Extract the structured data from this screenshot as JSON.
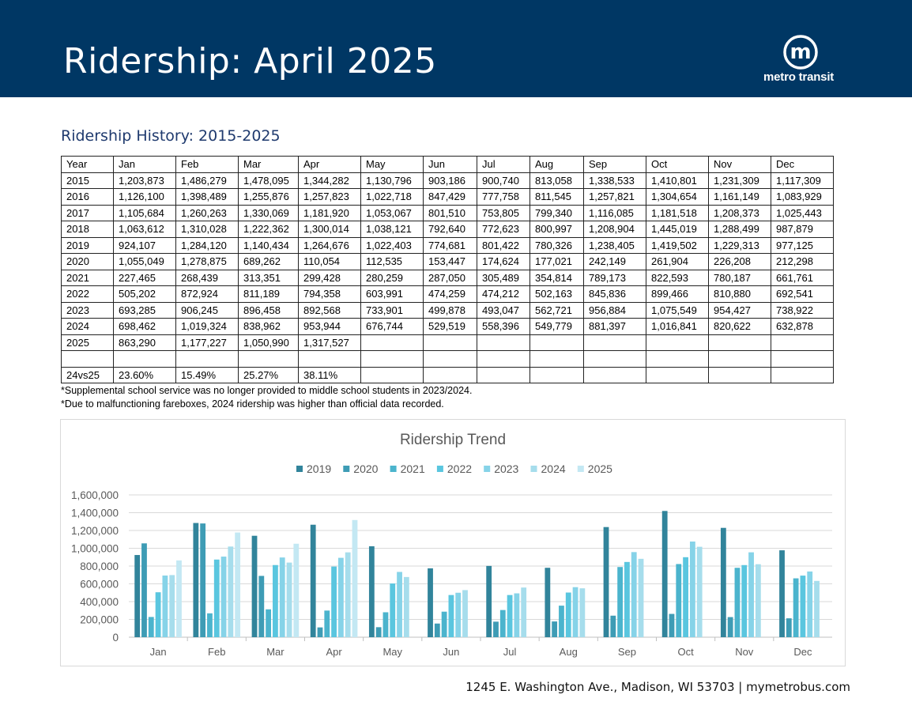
{
  "header": {
    "title": "Ridership: April 2025",
    "brand": "metro transit",
    "logo_letter": "m"
  },
  "section_title": "Ridership History: 2015-2025",
  "table": {
    "headers": [
      "Year",
      "Jan",
      "Feb",
      "Mar",
      "Apr",
      "May",
      "Jun",
      "Jul",
      "Aug",
      "Sep",
      "Oct",
      "Nov",
      "Dec"
    ],
    "rows": [
      [
        "2015",
        "1,203,873",
        "1,486,279",
        "1,478,095",
        "1,344,282",
        "1,130,796",
        "903,186",
        "900,740",
        "813,058",
        "1,338,533",
        "1,410,801",
        "1,231,309",
        "1,117,309"
      ],
      [
        "2016",
        "1,126,100",
        "1,398,489",
        "1,255,876",
        "1,257,823",
        "1,022,718",
        "847,429",
        "777,758",
        "811,545",
        "1,257,821",
        "1,304,654",
        "1,161,149",
        "1,083,929"
      ],
      [
        "2017",
        "1,105,684",
        "1,260,263",
        "1,330,069",
        "1,181,920",
        "1,053,067",
        "801,510",
        "753,805",
        "799,340",
        "1,116,085",
        "1,181,518",
        "1,208,373",
        "1,025,443"
      ],
      [
        "2018",
        "1,063,612",
        "1,310,028",
        "1,222,362",
        "1,300,014",
        "1,038,121",
        "792,640",
        "772,623",
        "800,997",
        "1,208,904",
        "1,445,019",
        "1,288,499",
        "987,879"
      ],
      [
        "2019",
        "924,107",
        "1,284,120",
        "1,140,434",
        "1,264,676",
        "1,022,403",
        "774,681",
        "801,422",
        "780,326",
        "1,238,405",
        "1,419,502",
        "1,229,313",
        "977,125"
      ],
      [
        "2020",
        "1,055,049",
        "1,278,875",
        "689,262",
        "110,054",
        "112,535",
        "153,447",
        "174,624",
        "177,021",
        "242,149",
        "261,904",
        "226,208",
        "212,298"
      ],
      [
        "2021",
        "227,465",
        "268,439",
        "313,351",
        "299,428",
        "280,259",
        "287,050",
        "305,489",
        "354,814",
        "789,173",
        "822,593",
        "780,187",
        "661,761"
      ],
      [
        "2022",
        "505,202",
        "872,924",
        "811,189",
        "794,358",
        "603,991",
        "474,259",
        "474,212",
        "502,163",
        "845,836",
        "899,466",
        "810,880",
        "692,541"
      ],
      [
        "2023",
        "693,285",
        "906,245",
        "896,458",
        "892,568",
        "733,901",
        "499,878",
        "493,047",
        "562,721",
        "956,884",
        "1,075,549",
        "954,427",
        "738,922"
      ],
      [
        "2024",
        "698,462",
        "1,019,324",
        "838,962",
        "953,944",
        "676,744",
        "529,519",
        "558,396",
        "549,779",
        "881,397",
        "1,016,841",
        "820,622",
        "632,878"
      ],
      [
        "2025",
        "863,290",
        "1,177,227",
        "1,050,990",
        " 1,317,527",
        "",
        "",
        "",
        "",
        "",
        "",
        "",
        ""
      ],
      [
        "",
        "",
        "",
        "",
        "",
        "",
        "",
        "",
        "",
        "",
        "",
        "",
        ""
      ],
      [
        "24vs25",
        "23.60%",
        "15.49%",
        "25.27%",
        " 38.11%",
        "",
        "",
        "",
        "",
        "",
        "",
        "",
        ""
      ]
    ]
  },
  "notes": [
    "*Supplemental school service was no longer provided to middle school students in 2023/2024.",
    "*Due to malfunctioning fareboxes, 2024 ridership was higher than official data recorded."
  ],
  "chart_data": {
    "type": "bar",
    "title": "Ridership Trend",
    "categories": [
      "Jan",
      "Feb",
      "Mar",
      "Apr",
      "May",
      "Jun",
      "Jul",
      "Aug",
      "Sep",
      "Oct",
      "Nov",
      "Dec"
    ],
    "series": [
      {
        "name": "2019",
        "color": "#31849b",
        "values": [
          924107,
          1284120,
          1140434,
          1264676,
          1022403,
          774681,
          801422,
          780326,
          1238405,
          1419502,
          1229313,
          977125
        ]
      },
      {
        "name": "2020",
        "color": "#3e9cb5",
        "values": [
          1055049,
          1278875,
          689262,
          110054,
          112535,
          153447,
          174624,
          177021,
          242149,
          261904,
          226208,
          212298
        ]
      },
      {
        "name": "2021",
        "color": "#4bb4cd",
        "values": [
          227465,
          268439,
          313351,
          299428,
          280259,
          287050,
          305489,
          354814,
          789173,
          822593,
          780187,
          661761
        ]
      },
      {
        "name": "2022",
        "color": "#5ac6df",
        "values": [
          505202,
          872924,
          811189,
          794358,
          603991,
          474259,
          474212,
          502163,
          845836,
          899466,
          810880,
          692541
        ]
      },
      {
        "name": "2023",
        "color": "#86d3e8",
        "values": [
          693285,
          906245,
          896458,
          892568,
          733901,
          499878,
          493047,
          562721,
          956884,
          1075549,
          954427,
          738922
        ]
      },
      {
        "name": "2024",
        "color": "#a6ddec",
        "values": [
          698462,
          1019324,
          838962,
          953944,
          676744,
          529519,
          558396,
          549779,
          881397,
          1016841,
          820622,
          632878
        ]
      },
      {
        "name": "2025",
        "color": "#c3e8f3",
        "values": [
          863290,
          1177227,
          1050990,
          1317527,
          null,
          null,
          null,
          null,
          null,
          null,
          null,
          null
        ]
      }
    ],
    "yticks": [
      "0",
      "200,000",
      "400,000",
      "600,000",
      "800,000",
      "1,000,000",
      "1,200,000",
      "1,400,000",
      "1,600,000"
    ],
    "ylim": [
      0,
      1600000
    ],
    "xlabel": "",
    "ylabel": "",
    "legend": "top",
    "grid": true
  },
  "footer": {
    "text": "1245 E. Washington Ave., Madison, WI 53703  |  mymetrobus.com"
  },
  "colors": {
    "header_bg": "#003764",
    "title_blue": "#1f3a6e"
  }
}
